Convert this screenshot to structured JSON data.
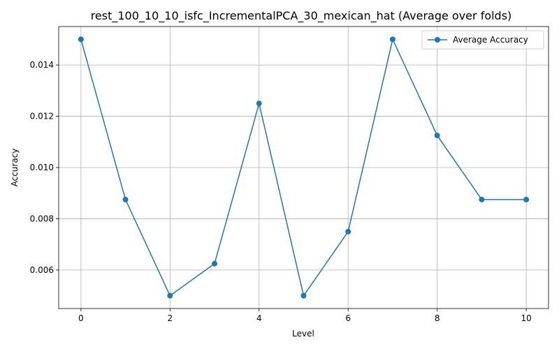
{
  "chart_data": {
    "type": "line",
    "title": "rest_100_10_10_isfc_IncrementalPCA_30_mexican_hat (Average over folds)",
    "xlabel": "Level",
    "ylabel": "Accuracy",
    "x": [
      0,
      1,
      2,
      3,
      4,
      5,
      6,
      7,
      8,
      9,
      10
    ],
    "series": [
      {
        "name": "Average Accuracy",
        "color": "#1f77b4",
        "marker": "circle",
        "values": [
          0.015,
          0.00875,
          0.005,
          0.00625,
          0.0125,
          0.005,
          0.0075,
          0.015,
          0.01125,
          0.00875,
          0.00875
        ]
      }
    ],
    "xlim": [
      -0.5,
      10.5
    ],
    "ylim": [
      0.0045,
      0.0155
    ],
    "xticks": [
      0,
      2,
      4,
      6,
      8,
      10
    ],
    "xtick_labels": [
      "0",
      "2",
      "4",
      "6",
      "8",
      "10"
    ],
    "yticks": [
      0.006,
      0.008,
      0.01,
      0.012,
      0.014
    ],
    "ytick_labels": [
      "0.006",
      "0.008",
      "0.010",
      "0.012",
      "0.014"
    ],
    "grid": true,
    "legend_position": "top-right"
  }
}
